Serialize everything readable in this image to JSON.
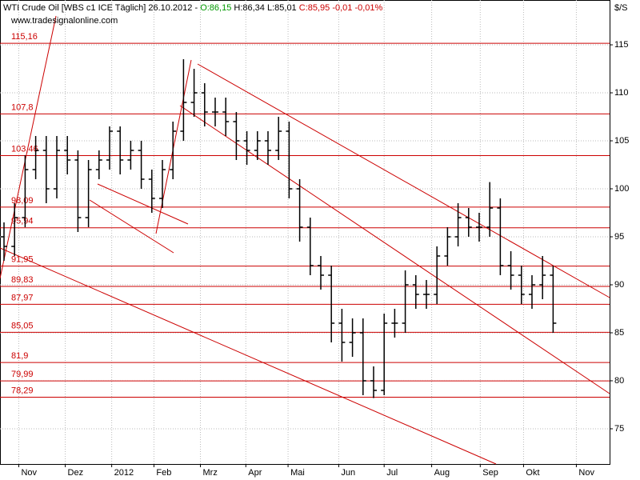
{
  "chart_data": {
    "type": "ohlc",
    "header": [
      "WTI Crude Oil [WBS c1 ICE  Täglich] 26.10.2012 -",
      "O:86,15",
      "H:86,34 L:85,01",
      "C:85,95 -0,01 -0,01%"
    ],
    "subtitle": "www.tradesignalonline.com",
    "y_axis_label": "$/S",
    "color": "#000000",
    "open": [
      95,
      94,
      97,
      102,
      104,
      100,
      104,
      103,
      97,
      102,
      103,
      106,
      103,
      104,
      101,
      99,
      102,
      106,
      109,
      110,
      108,
      108,
      107,
      105,
      104,
      105,
      104,
      106,
      100,
      96,
      92,
      91,
      86,
      84,
      85,
      80,
      79,
      86,
      86,
      90,
      89,
      89,
      93,
      95,
      97,
      96,
      96,
      98,
      92,
      91,
      89,
      90,
      91
    ],
    "high": [
      96.5,
      98.5,
      103.5,
      105.5,
      105.5,
      105.5,
      105.5,
      104,
      103,
      104,
      106.5,
      106.5,
      105,
      105,
      102,
      103,
      107,
      113.5,
      112.5,
      111,
      109.5,
      109.5,
      108,
      106,
      106,
      106,
      107.5,
      107,
      101,
      97,
      93,
      92,
      87.5,
      86.5,
      86.5,
      81.5,
      87,
      87.5,
      91.5,
      91,
      90.5,
      94,
      96,
      98.5,
      98,
      97.5,
      100.7,
      99,
      93.5,
      92,
      91,
      93,
      92
    ],
    "low": [
      92.5,
      93,
      96,
      101,
      98.5,
      99,
      101.5,
      95.5,
      96,
      101,
      102,
      101.5,
      102,
      100,
      97.5,
      98,
      101,
      105,
      107.5,
      106.5,
      106.5,
      105.5,
      103,
      102.5,
      103,
      102.5,
      103,
      99,
      94.5,
      91,
      89.5,
      84,
      82,
      82.5,
      78.5,
      78.2,
      78.5,
      84.5,
      85,
      87.5,
      87.5,
      88,
      92,
      94,
      95,
      94.5,
      95,
      91,
      89.5,
      88,
      87.5,
      88.5,
      85
    ],
    "close": [
      94,
      97,
      102,
      104,
      100,
      104,
      103,
      97,
      102,
      103,
      106,
      103,
      104,
      101,
      99,
      102,
      106,
      109,
      110,
      108,
      108,
      107,
      105,
      104,
      105,
      104,
      106,
      100,
      96,
      92,
      91,
      86,
      84,
      85,
      80,
      79,
      86,
      86,
      90,
      89,
      89,
      93,
      95,
      97,
      96,
      96,
      98,
      92,
      91,
      89,
      90,
      91,
      86
    ],
    "xlim": [
      -0.379,
      57.35
    ],
    "xticks": [
      {
        "value": 1.4,
        "label": "Nov"
      },
      {
        "value": 5.8,
        "label": "Dez"
      },
      {
        "value": 10.2,
        "label": "2012"
      },
      {
        "value": 14.2,
        "label": "Feb"
      },
      {
        "value": 18.6,
        "label": "Mrz"
      },
      {
        "value": 22.9,
        "label": "Apr"
      },
      {
        "value": 26.9,
        "label": "Mai"
      },
      {
        "value": 31.7,
        "label": "Jun"
      },
      {
        "value": 36,
        "label": "Jul"
      },
      {
        "value": 40.5,
        "label": "Aug"
      },
      {
        "value": 45.1,
        "label": "Sep"
      },
      {
        "value": 49.2,
        "label": "Okt"
      },
      {
        "value": 54.2,
        "label": "Nov"
      }
    ],
    "ylim": [
      71.33,
      119.67
    ],
    "yticks": [
      75,
      80,
      85,
      90,
      95,
      100,
      105,
      110,
      115
    ],
    "grid": true,
    "levels": [
      {
        "value": 115.16,
        "label": "115,16"
      },
      {
        "value": 107.8,
        "label": "107,8"
      },
      {
        "value": 103.46,
        "label": "103,46"
      },
      {
        "value": 98.09,
        "label": "98,09"
      },
      {
        "value": 95.94,
        "label": "95,94"
      },
      {
        "value": 91.95,
        "label": "91,95"
      },
      {
        "value": 89.83,
        "label": "89,83"
      },
      {
        "value": 87.97,
        "label": "87,97"
      },
      {
        "value": 85.05,
        "label": "85,05"
      },
      {
        "value": 81.9,
        "label": "81,9"
      },
      {
        "value": 79.99,
        "label": "79,99"
      },
      {
        "value": 78.29,
        "label": "78,29"
      }
    ],
    "level_color": "#cc0000"
  }
}
